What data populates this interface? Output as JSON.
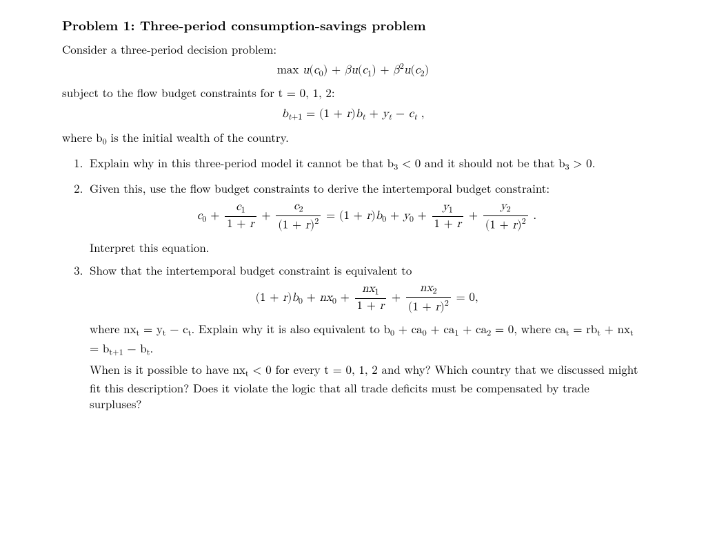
{
  "colors": {
    "text": "#000000",
    "background": "#ffffff"
  },
  "typography": {
    "body_fontsize_pt": 12,
    "title_fontsize_pt": 14,
    "family": "Computer Modern / Latin Modern (serif)"
  },
  "title": "Problem 1: Three-period consumption-savings problem",
  "intro": "Consider a three-period decision problem:",
  "eq_objective_html": "max <span class='it'>u</span>(<span class='it'>c</span><sub>0</sub>) + <span class='it'>β</span><span class='it'>u</span>(<span class='it'>c</span><sub>1</sub>) + <span class='it'>β</span><sup>2</sup><span class='it'>u</span>(<span class='it'>c</span><sub>2</sub>)",
  "subject_line_html": "subject to the flow budget constraints for <span class='mline'><span class='it'>t</span> = 0, 1, 2</span>:",
  "eq_flow_html": "<span class='it'>b</span><sub><span class='it'>t</span>+1</sub> = (1 + <span class='it'>r</span>)<span class='it'>b</span><sub><span class='it'>t</span></sub> + <span class='it'>y</span><sub><span class='it'>t</span></sub> − <span class='it'>c</span><sub><span class='it'>t</span></sub> ,",
  "where_line_html": "where <span class='mline'><span class='it'>b</span><sub>0</sub></span> is the initial wealth of the country.",
  "items": [
    {
      "lead_html": "Explain why in this three-period model it cannot be that <span class='mline'><span class='it'>b</span><sub>3</sub> &lt; 0</span> and it should not be that <span class='mline'><span class='it'>b</span><sub>3</sub> &gt; 0</span>."
    },
    {
      "lead_html": "Given this, use the flow budget constraints to derive the intertemporal budget constraint:",
      "eq_html": "<span class='it'>c</span><sub>0</sub> + <span class='frac'><span class='num'><span class='it'>c</span><sub>1</sub></span><span class='den'>1 + <span class='it'>r</span></span></span> + <span class='frac'><span class='num'><span class='it'>c</span><sub>2</sub></span><span class='den'>(1 + <span class='it'>r</span>)<sup>2</sup></span></span> = (1 + <span class='it'>r</span>)<span class='it'>b</span><sub>0</sub> + <span class='it'>y</span><sub>0</sub> + <span class='frac'><span class='num'><span class='it'>y</span><sub>1</sub></span><span class='den'>1 + <span class='it'>r</span></span></span> + <span class='frac'><span class='num'><span class='it'>y</span><sub>2</sub></span><span class='den'>(1 + <span class='it'>r</span>)<sup>2</sup></span></span> .",
      "trail_html": "Interpret this equation."
    },
    {
      "lead_html": "Show that the intertemporal budget constraint is equivalent to",
      "eq_html": "(1 + <span class='it'>r</span>)<span class='it'>b</span><sub>0</sub> + <span class='it'>nx</span><sub>0</sub> + <span class='frac'><span class='num'><span class='it'>nx</span><sub>1</sub></span><span class='den'>1 + <span class='it'>r</span></span></span> + <span class='frac'><span class='num'><span class='it'>nx</span><sub>2</sub></span><span class='den'>(1 + <span class='it'>r</span>)<sup>2</sup></span></span> = 0,",
      "trail_html": "where <span class='mline'><span class='it'>nx</span><sub><span class='it'>t</span></sub> = <span class='it'>y</span><sub><span class='it'>t</span></sub> − <span class='it'>c</span><sub><span class='it'>t</span></sub></span>. Explain why it is also equivalent to <span class='mline'><span class='it'>b</span><sub>0</sub> + <span class='it'>ca</span><sub>0</sub> + <span class='it'>ca</span><sub>1</sub> + <span class='it'>ca</span><sub>2</sub> = 0</span>, where <span class='mline'><span class='it'>ca</span><sub><span class='it'>t</span></sub> = <span class='it'>rb</span><sub><span class='it'>t</span></sub> + <span class='it'>nx</span><sub><span class='it'>t</span></sub> = <span class='it'>b</span><sub><span class='it'>t</span>+1</sub> − <span class='it'>b</span><sub><span class='it'>t</span></sub></span>.",
      "trail2_html": "When is it possible to have <span class='mline'><span class='it'>nx</span><sub><span class='it'>t</span></sub> &lt; 0</span> for every <span class='mline'><span class='it'>t</span> = 0, 1, 2</span> and why? Which country that we discussed might fit this description? Does it violate the logic that all trade deficits must be compensated by trade surpluses?"
    }
  ]
}
